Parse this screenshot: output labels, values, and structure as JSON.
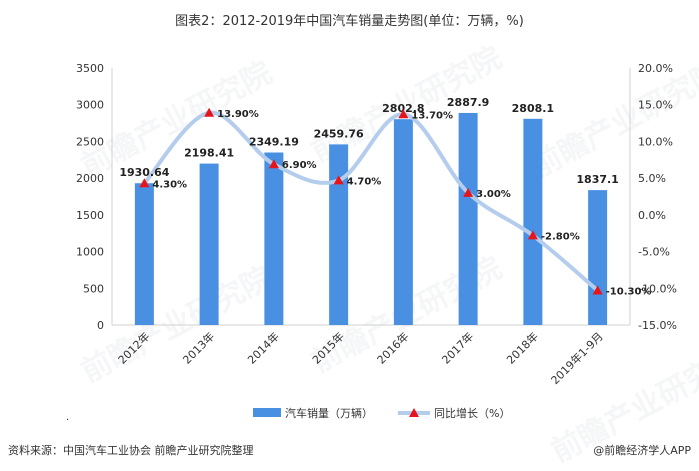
{
  "page": {
    "title": "图表2：2012-2019年中国汽车销量走势图(单位：万辆，%)",
    "source": "资料来源：中国汽车工业协会 前瞻产业研究院整理",
    "credit": "@前瞻经济学人APP",
    "watermark": "前瞻产业研究院",
    "dot": "."
  },
  "chart_data": {
    "type": "bar",
    "categories": [
      "2012年",
      "2013年",
      "2014年",
      "2015年",
      "2016年",
      "2017年",
      "2018年",
      "2019年1-9月"
    ],
    "series": [
      {
        "name": "汽车销量（万辆）",
        "type": "bar",
        "axis": "left",
        "color": "#4a90e2",
        "values": [
          1930.64,
          2198.41,
          2349.19,
          2459.76,
          2802.8,
          2887.9,
          2808.1,
          1837.1
        ],
        "labels": [
          "1930.64",
          "2198.41",
          "2349.19",
          "2459.76",
          "2802.8",
          "2887.9",
          "2808.1",
          "1837.1"
        ]
      },
      {
        "name": "同比增长（%）",
        "type": "line",
        "axis": "right",
        "color": "#b4cdec",
        "marker_color": "#e8141b",
        "values": [
          4.3,
          13.9,
          6.9,
          4.7,
          13.7,
          3.0,
          -2.8,
          -10.3
        ],
        "labels": [
          "4.30%",
          "13.90%",
          "6.90%",
          "4.70%",
          "13.70%",
          "3.00%",
          "-2.80%",
          "-10.30%"
        ]
      }
    ],
    "y_left": {
      "ylim": [
        0,
        3500
      ],
      "ticks": [
        0,
        500,
        1000,
        1500,
        2000,
        2500,
        3000,
        3500
      ],
      "tick_labels": [
        "0",
        "500",
        "1000",
        "1500",
        "2000",
        "2500",
        "3000",
        "3500"
      ]
    },
    "y_right": {
      "ylim": [
        -15,
        20
      ],
      "ticks": [
        -15,
        -10,
        -5,
        0,
        5,
        10,
        15,
        20
      ],
      "tick_labels": [
        "-15.0%",
        "-10.0%",
        "-5.0%",
        "0.0%",
        "5.0%",
        "10.0%",
        "15.0%",
        "20.0%"
      ]
    },
    "grid": false,
    "legend": "bottom"
  }
}
